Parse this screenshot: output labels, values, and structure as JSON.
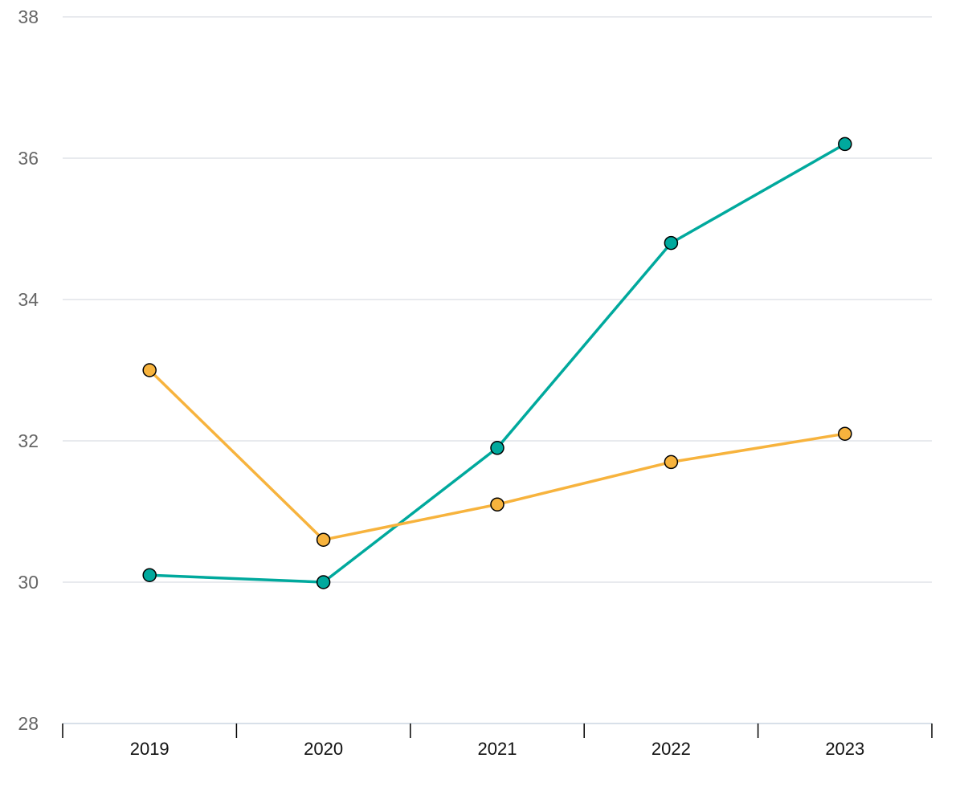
{
  "chart_data": {
    "type": "line",
    "categories": [
      "2019",
      "2020",
      "2021",
      "2022",
      "2023"
    ],
    "y_ticks": [
      28,
      30,
      32,
      34,
      36,
      38
    ],
    "ylim": [
      28,
      38
    ],
    "grid": true,
    "legend": "none",
    "series": [
      {
        "color": "#00a99d",
        "values": [
          30.1,
          30.0,
          31.9,
          34.8,
          36.2
        ]
      },
      {
        "color": "#f7b33d",
        "values": [
          33.0,
          30.6,
          31.1,
          31.7,
          32.1
        ]
      }
    ]
  }
}
